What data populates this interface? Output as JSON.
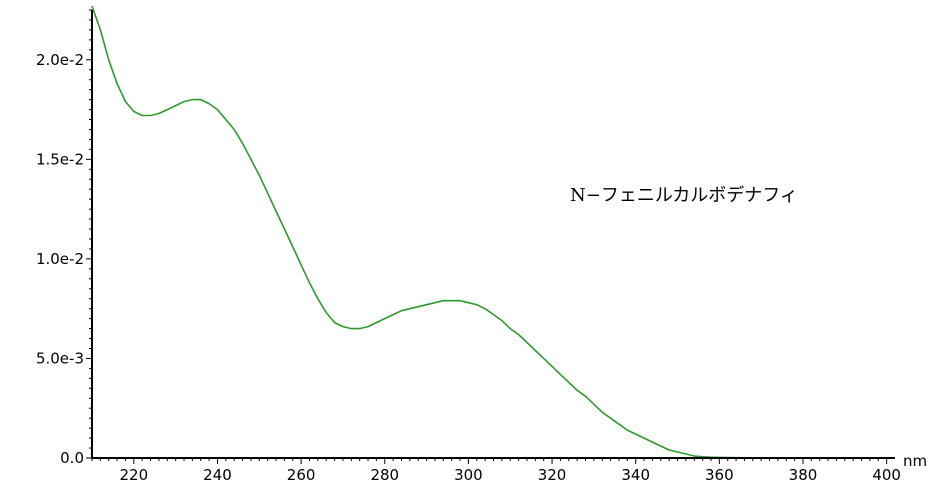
{
  "chart_data": {
    "type": "line",
    "title": "",
    "xlabel": "",
    "ylabel": "",
    "x_unit": "nm",
    "xlim": [
      210,
      402
    ],
    "ylim": [
      0,
      0.0225
    ],
    "grid": false,
    "legend": "none",
    "x_ticks": [
      220,
      240,
      260,
      280,
      300,
      320,
      340,
      360,
      380,
      400
    ],
    "x_tick_labels": [
      "220",
      "240",
      "260",
      "280",
      "300",
      "320",
      "340",
      "360",
      "380",
      "400"
    ],
    "y_ticks": [
      0,
      0.005,
      0.01,
      0.015,
      0.02
    ],
    "y_tick_labels": [
      "0.0",
      "5.0e-3",
      "1.0e-2",
      "1.5e-2",
      "2.0e-2"
    ],
    "annotation": "N−フェニルカルボデナフィ",
    "series": [
      {
        "color": "#2e9a2e",
        "x": [
          210,
          212,
          214,
          216,
          218,
          220,
          222,
          224,
          226,
          228,
          230,
          232,
          234,
          236,
          238,
          240,
          242,
          244,
          246,
          248,
          250,
          252,
          254,
          256,
          258,
          260,
          262,
          264,
          266,
          268,
          270,
          272,
          274,
          276,
          278,
          280,
          282,
          284,
          286,
          288,
          290,
          292,
          294,
          296,
          298,
          300,
          302,
          304,
          306,
          308,
          310,
          312,
          314,
          316,
          318,
          320,
          322,
          324,
          326,
          328,
          330,
          332,
          334,
          336,
          338,
          340,
          342,
          344,
          346,
          348,
          350,
          352,
          354,
          356,
          358,
          360,
          362,
          364,
          366,
          368,
          370,
          375,
          380,
          385,
          390,
          395,
          400
        ],
        "y": [
          0.0227,
          0.0215,
          0.02,
          0.0188,
          0.0179,
          0.0174,
          0.0172,
          0.0172,
          0.0173,
          0.0175,
          0.0177,
          0.0179,
          0.018,
          0.018,
          0.0178,
          0.0175,
          0.017,
          0.0165,
          0.0158,
          0.015,
          0.0142,
          0.0133,
          0.0124,
          0.0115,
          0.0106,
          0.0097,
          0.0088,
          0.008,
          0.0073,
          0.0068,
          0.0066,
          0.0065,
          0.0065,
          0.0066,
          0.0068,
          0.007,
          0.0072,
          0.0074,
          0.0075,
          0.0076,
          0.0077,
          0.0078,
          0.0079,
          0.0079,
          0.0079,
          0.0078,
          0.0077,
          0.0075,
          0.0072,
          0.0069,
          0.0065,
          0.0062,
          0.0058,
          0.0054,
          0.005,
          0.0046,
          0.0042,
          0.0038,
          0.0034,
          0.0031,
          0.0027,
          0.0023,
          0.002,
          0.0017,
          0.0014,
          0.0012,
          0.001,
          0.0008,
          0.0006,
          0.0004,
          0.0003,
          0.0002,
          0.0001,
          6e-05,
          4e-05,
          3e-05,
          2e-05,
          1.5e-05,
          1e-05,
          1e-05,
          1e-05,
          1e-05,
          1e-05,
          1e-05,
          1e-05,
          1e-05,
          1e-05
        ]
      }
    ]
  }
}
